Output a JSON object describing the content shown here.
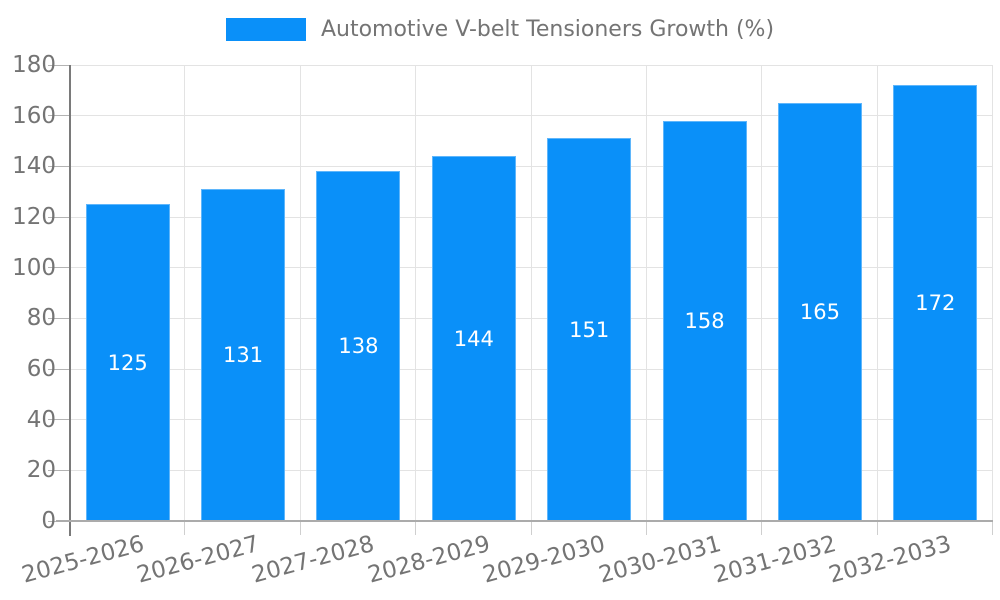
{
  "chart_data": {
    "type": "bar",
    "legend": "Automotive V-belt Tensioners Growth (%)",
    "categories": [
      "2025-2026",
      "2026-2027",
      "2027-2028",
      "2028-2029",
      "2029-2030",
      "2030-2031",
      "2031-2032",
      "2032-2033"
    ],
    "values": [
      125,
      131,
      138,
      144,
      151,
      158,
      165,
      172
    ],
    "ylim": [
      0,
      180
    ],
    "ytick_step": 20,
    "ytick_labels": [
      "0",
      "20",
      "40",
      "60",
      "80",
      "100",
      "120",
      "140",
      "160",
      "180"
    ],
    "grid": true,
    "legend_position": "top-center",
    "bar_color": "#0a90f9",
    "value_label_color": "#ffffff",
    "axis_text_color": "#747474"
  }
}
